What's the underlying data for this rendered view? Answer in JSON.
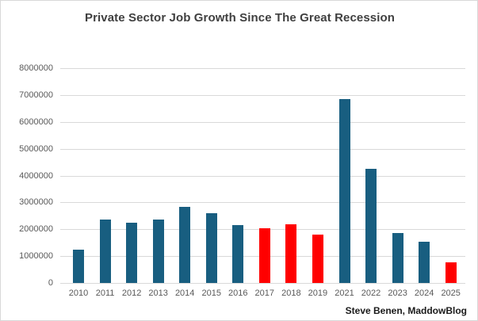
{
  "title": "Private Sector Job Growth Since The Great Recession",
  "attribution": "Steve Benen, MaddowBlog",
  "chart_data": {
    "type": "bar",
    "title": "Private Sector Job Growth Since The Great Recession",
    "categories": [
      "2010",
      "2011",
      "2012",
      "2013",
      "2014",
      "2015",
      "2016",
      "2017",
      "2018",
      "2019",
      "2021",
      "2022",
      "2023",
      "2024",
      "2025"
    ],
    "values": [
      1250000,
      2350000,
      2250000,
      2350000,
      2850000,
      2600000,
      2150000,
      2050000,
      2200000,
      1800000,
      6850000,
      4250000,
      1850000,
      1550000,
      780000
    ],
    "highlighted_categories": [
      "2017",
      "2018",
      "2019",
      "2025"
    ],
    "bar_colors": [
      "#185E80",
      "#185E80",
      "#185E80",
      "#185E80",
      "#185E80",
      "#185E80",
      "#185E80",
      "#FF0000",
      "#FF0000",
      "#FF0000",
      "#185E80",
      "#185E80",
      "#185E80",
      "#185E80",
      "#FF0000"
    ],
    "colors": {
      "default_bar": "#185E80",
      "highlight_bar": "#FF0000",
      "gridline": "#D9D9D9",
      "tick_label": "#595959",
      "title_text": "#404040"
    },
    "xlabel": "",
    "ylabel": "",
    "ylim": [
      0,
      8000000
    ],
    "y_ticks": [
      0,
      1000000,
      2000000,
      3000000,
      4000000,
      5000000,
      6000000,
      7000000,
      8000000
    ],
    "y_tick_labels": [
      "0",
      "1000000",
      "2000000",
      "3000000",
      "4000000",
      "5000000",
      "6000000",
      "7000000",
      "8000000"
    ],
    "grid": "horizontal",
    "legend": "none"
  }
}
